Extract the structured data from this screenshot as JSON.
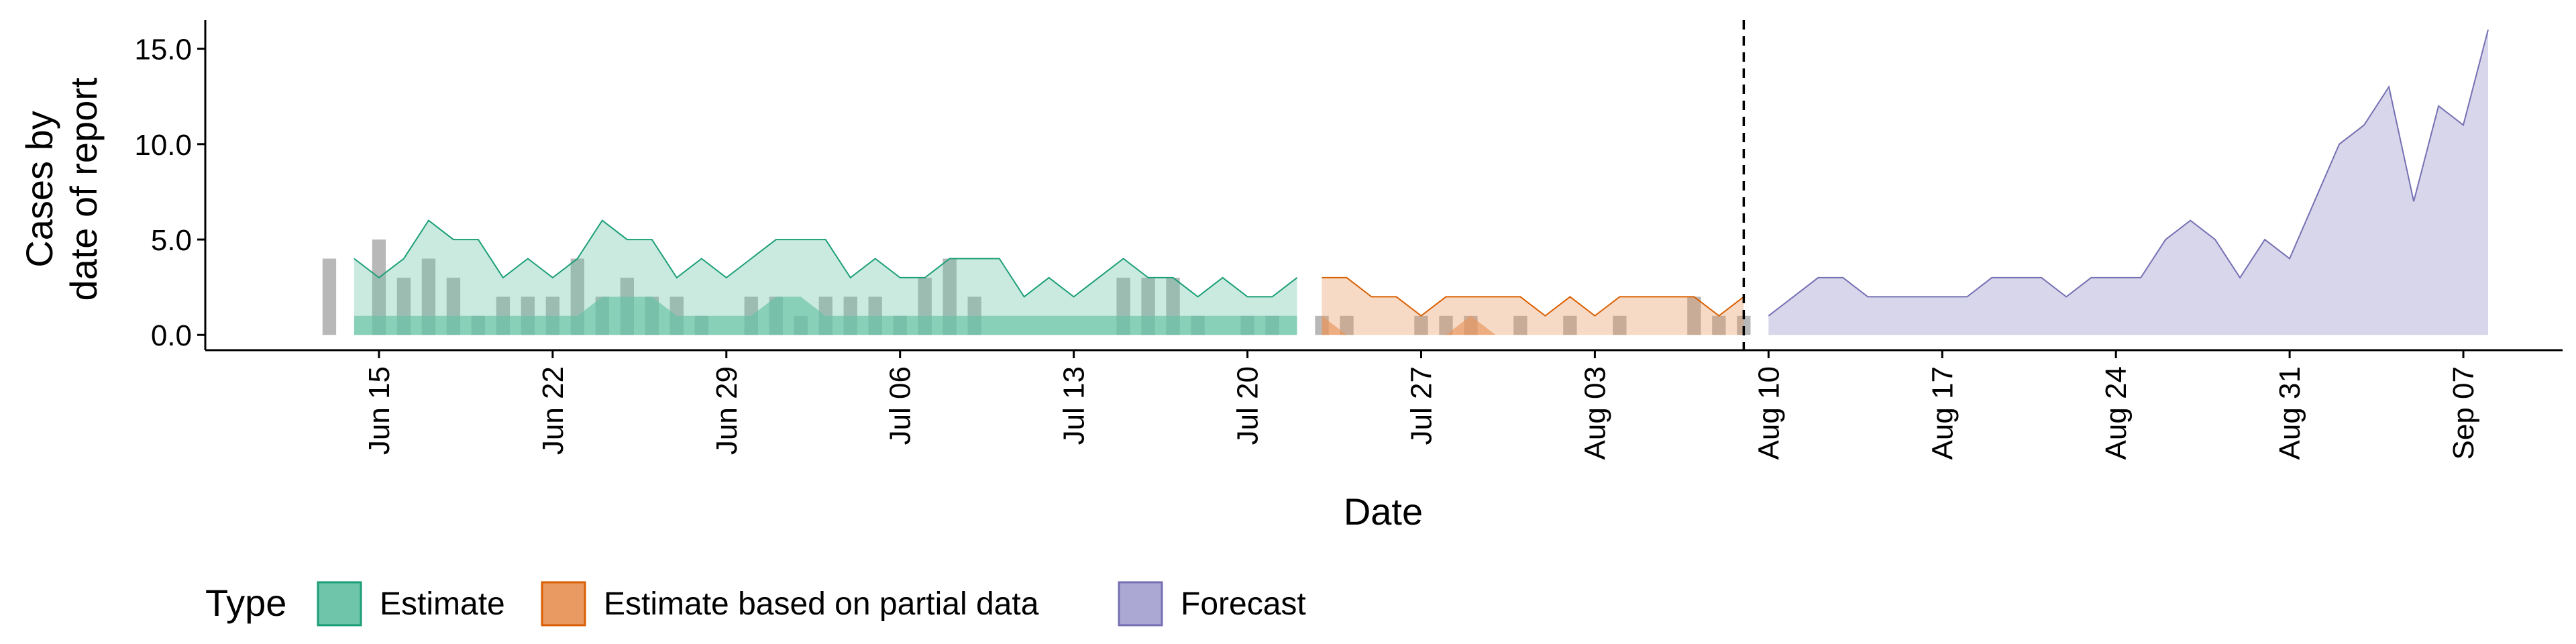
{
  "chart_data": {
    "type": "area",
    "title": "",
    "xlabel": "Date",
    "ylabel": [
      "Cases by",
      "date of report"
    ],
    "ylim": [
      -0.8,
      16.5
    ],
    "yticks": [
      0.0,
      5.0,
      10.0,
      15.0
    ],
    "ytick_labels": [
      "0.0",
      "5.0",
      "10.0",
      "15.0"
    ],
    "xlim": [
      "2020-06-08",
      "2020-09-11"
    ],
    "xticks": [
      "2020-06-15",
      "2020-06-22",
      "2020-06-29",
      "2020-07-06",
      "2020-07-13",
      "2020-07-20",
      "2020-07-27",
      "2020-08-03",
      "2020-08-10",
      "2020-08-17",
      "2020-08-24",
      "2020-08-31",
      "2020-09-07"
    ],
    "xtick_labels": [
      "Jun 15",
      "Jun 22",
      "Jun 29",
      "Jul 06",
      "Jul 13",
      "Jul 20",
      "Jul 27",
      "Aug 03",
      "Aug 10",
      "Aug 17",
      "Aug 24",
      "Aug 31",
      "Sep 07"
    ],
    "vline_date": "2020-08-09",
    "grid": false,
    "legend": {
      "title": "Type",
      "position": "bottom",
      "entries": [
        {
          "label": "Estimate",
          "fill": "#66c2a5",
          "stroke": "#1b9e77"
        },
        {
          "label": "Estimate based on partial data",
          "fill": "#e8955a",
          "stroke": "#d95f02"
        },
        {
          "label": "Forecast",
          "fill": "#a7a3d1",
          "stroke": "#7570b3"
        }
      ]
    },
    "reported_cases": {
      "color": "#a0a0a0",
      "dates": [
        "2020-06-13",
        "2020-06-15",
        "2020-06-16",
        "2020-06-17",
        "2020-06-18",
        "2020-06-19",
        "2020-06-20",
        "2020-06-21",
        "2020-06-22",
        "2020-06-23",
        "2020-06-24",
        "2020-06-25",
        "2020-06-26",
        "2020-06-27",
        "2020-06-28",
        "2020-06-30",
        "2020-07-01",
        "2020-07-02",
        "2020-07-03",
        "2020-07-04",
        "2020-07-05",
        "2020-07-06",
        "2020-07-07",
        "2020-07-08",
        "2020-07-09",
        "2020-07-15",
        "2020-07-16",
        "2020-07-17",
        "2020-07-18",
        "2020-07-20",
        "2020-07-21",
        "2020-07-23",
        "2020-07-24",
        "2020-07-27",
        "2020-07-28",
        "2020-07-29",
        "2020-07-31",
        "2020-08-02",
        "2020-08-04",
        "2020-08-07",
        "2020-08-08",
        "2020-08-09"
      ],
      "values": [
        4,
        5,
        3,
        4,
        3,
        1,
        2,
        2,
        2,
        4,
        2,
        3,
        2,
        2,
        1,
        2,
        2,
        1,
        2,
        2,
        2,
        1,
        3,
        4,
        2,
        3,
        3,
        3,
        1,
        1,
        1,
        1,
        1,
        1,
        1,
        1,
        1,
        1,
        1,
        2,
        1,
        1
      ]
    },
    "series": [
      {
        "name": "Estimate",
        "stroke": "#1b9e77",
        "dates": [
          "2020-06-14",
          "2020-06-15",
          "2020-06-16",
          "2020-06-17",
          "2020-06-18",
          "2020-06-19",
          "2020-06-20",
          "2020-06-21",
          "2020-06-22",
          "2020-06-23",
          "2020-06-24",
          "2020-06-25",
          "2020-06-26",
          "2020-06-27",
          "2020-06-28",
          "2020-06-29",
          "2020-06-30",
          "2020-07-01",
          "2020-07-02",
          "2020-07-03",
          "2020-07-04",
          "2020-07-05",
          "2020-07-06",
          "2020-07-07",
          "2020-07-08",
          "2020-07-09",
          "2020-07-10",
          "2020-07-11",
          "2020-07-12",
          "2020-07-13",
          "2020-07-14",
          "2020-07-15",
          "2020-07-16",
          "2020-07-17",
          "2020-07-18",
          "2020-07-19",
          "2020-07-20",
          "2020-07-21",
          "2020-07-22"
        ],
        "upper_90": [
          4,
          3,
          4,
          6,
          5,
          5,
          3,
          4,
          3,
          4,
          6,
          5,
          5,
          3,
          4,
          3,
          4,
          5,
          5,
          5,
          3,
          4,
          3,
          3,
          4,
          4,
          4,
          2,
          3,
          2,
          3,
          4,
          3,
          3,
          2,
          3,
          2,
          2,
          3
        ],
        "upper_50": [
          1,
          1,
          1,
          1,
          1,
          1,
          1,
          1,
          1,
          1,
          2,
          2,
          2,
          1,
          1,
          1,
          1,
          2,
          2,
          1,
          1,
          1,
          1,
          1,
          1,
          1,
          1,
          1,
          1,
          1,
          1,
          1,
          1,
          1,
          1,
          1,
          1,
          1,
          1
        ],
        "lower_50": [
          0,
          0,
          0,
          0,
          0,
          0,
          0,
          0,
          0,
          0,
          0,
          0,
          0,
          0,
          0,
          0,
          0,
          0,
          0,
          0,
          0,
          0,
          0,
          0,
          0,
          0,
          0,
          0,
          0,
          0,
          0,
          0,
          0,
          0,
          0,
          0,
          0,
          0,
          0
        ],
        "lower_90": [
          0,
          0,
          0,
          0,
          0,
          0,
          0,
          0,
          0,
          0,
          0,
          0,
          0,
          0,
          0,
          0,
          0,
          0,
          0,
          0,
          0,
          0,
          0,
          0,
          0,
          0,
          0,
          0,
          0,
          0,
          0,
          0,
          0,
          0,
          0,
          0,
          0,
          0,
          0
        ]
      },
      {
        "name": "Estimate based on partial data",
        "stroke": "#d95f02",
        "dates": [
          "2020-07-23",
          "2020-07-24",
          "2020-07-25",
          "2020-07-26",
          "2020-07-27",
          "2020-07-28",
          "2020-07-29",
          "2020-07-30",
          "2020-07-31",
          "2020-08-01",
          "2020-08-02",
          "2020-08-03",
          "2020-08-04",
          "2020-08-05",
          "2020-08-06",
          "2020-08-07",
          "2020-08-08",
          "2020-08-09"
        ],
        "upper_90": [
          3,
          3,
          2,
          2,
          1,
          2,
          2,
          2,
          2,
          1,
          2,
          1,
          2,
          2,
          2,
          2,
          1,
          2
        ],
        "upper_50": [
          1,
          0,
          0,
          0,
          0,
          0,
          1,
          0,
          0,
          0,
          0,
          0,
          0,
          0,
          0,
          0,
          0,
          0
        ],
        "lower_50": [
          0,
          0,
          0,
          0,
          0,
          0,
          0,
          0,
          0,
          0,
          0,
          0,
          0,
          0,
          0,
          0,
          0,
          0
        ],
        "lower_90": [
          0,
          0,
          0,
          0,
          0,
          0,
          0,
          0,
          0,
          0,
          0,
          0,
          0,
          0,
          0,
          0,
          0,
          0
        ]
      },
      {
        "name": "Forecast",
        "stroke": "#7570b3",
        "dates": [
          "2020-08-10",
          "2020-08-11",
          "2020-08-12",
          "2020-08-13",
          "2020-08-14",
          "2020-08-15",
          "2020-08-16",
          "2020-08-17",
          "2020-08-18",
          "2020-08-19",
          "2020-08-20",
          "2020-08-21",
          "2020-08-22",
          "2020-08-23",
          "2020-08-24",
          "2020-08-25",
          "2020-08-26",
          "2020-08-27",
          "2020-08-28",
          "2020-08-29",
          "2020-08-30",
          "2020-08-31",
          "2020-09-01",
          "2020-09-02",
          "2020-09-03",
          "2020-09-04",
          "2020-09-05",
          "2020-09-06",
          "2020-09-07",
          "2020-09-08"
        ],
        "upper_90": [
          1,
          2,
          3,
          3,
          2,
          2,
          2,
          2,
          2,
          3,
          3,
          3,
          2,
          3,
          3,
          3,
          5,
          6,
          5,
          3,
          5,
          4,
          7,
          10,
          11,
          13,
          7,
          12,
          11,
          16
        ],
        "lower_90": [
          0,
          0,
          0,
          0,
          0,
          0,
          0,
          0,
          0,
          0,
          0,
          0,
          0,
          0,
          0,
          0,
          0,
          0,
          0,
          0,
          0,
          0,
          0,
          0,
          0,
          0,
          0,
          0,
          0,
          0
        ]
      }
    ]
  }
}
